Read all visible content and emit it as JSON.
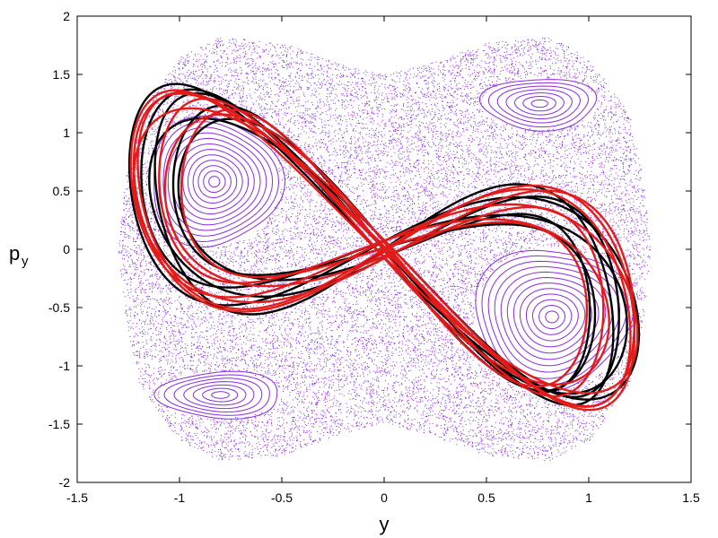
{
  "chart_data": {
    "type": "scatter",
    "title": "",
    "xlabel": "y",
    "ylabel_main": "p",
    "ylabel_sub": "y",
    "xlim": [
      -1.5,
      1.5
    ],
    "ylim": [
      -2,
      2
    ],
    "x_ticks": [
      -1.5,
      -1,
      -0.5,
      0,
      0.5,
      1,
      1.5
    ],
    "x_tick_labels": [
      "-1.5",
      "-1",
      "-0.5",
      "0",
      "0.5",
      "1",
      "1.5"
    ],
    "y_ticks": [
      -2,
      -1.5,
      -1,
      -0.5,
      0,
      0.5,
      1,
      1.5,
      2
    ],
    "y_tick_labels": [
      "-2",
      "-1.5",
      "-1",
      "-0.5",
      "0",
      "0.5",
      "1",
      "1.5",
      "2"
    ],
    "grid": false,
    "legend": "none",
    "colors": {
      "scatter": "#8a2be2",
      "orbit_black": "#000000",
      "orbit_red": "#e21b1b",
      "frame": "#000000"
    },
    "chaotic_sea": {
      "boundary_half_height": [
        {
          "y": -1.3,
          "p": 0.0
        },
        {
          "y": -1.27,
          "p": 0.55
        },
        {
          "y": -1.2,
          "p": 1.15
        },
        {
          "y": -1.0,
          "p": 1.65
        },
        {
          "y": -0.8,
          "p": 1.82
        },
        {
          "y": -0.5,
          "p": 1.77
        },
        {
          "y": -0.2,
          "p": 1.58
        },
        {
          "y": 0.0,
          "p": 1.5
        },
        {
          "y": 0.2,
          "p": 1.58
        },
        {
          "y": 0.5,
          "p": 1.77
        },
        {
          "y": 0.8,
          "p": 1.82
        },
        {
          "y": 1.0,
          "p": 1.65
        },
        {
          "y": 1.2,
          "p": 1.15
        },
        {
          "y": 1.27,
          "p": 0.55
        },
        {
          "y": 1.3,
          "p": 0.0
        }
      ]
    },
    "islands": [
      {
        "center": [
          -0.83,
          0.58
        ],
        "rx": 0.32,
        "ry": 0.55,
        "rings": 12
      },
      {
        "center": [
          0.82,
          -0.58
        ],
        "rx": 0.38,
        "ry": 0.6,
        "rings": 12
      },
      {
        "center": [
          0.76,
          1.25
        ],
        "rx": 0.28,
        "ry": 0.22,
        "rings": 7
      },
      {
        "center": [
          -0.8,
          -1.25
        ],
        "rx": 0.3,
        "ry": 0.2,
        "rings": 7
      }
    ],
    "series": [
      {
        "color": "black",
        "pattern": "figure-eight",
        "loops": 6
      },
      {
        "color": "red",
        "pattern": "figure-eight",
        "loops": 7
      }
    ]
  }
}
